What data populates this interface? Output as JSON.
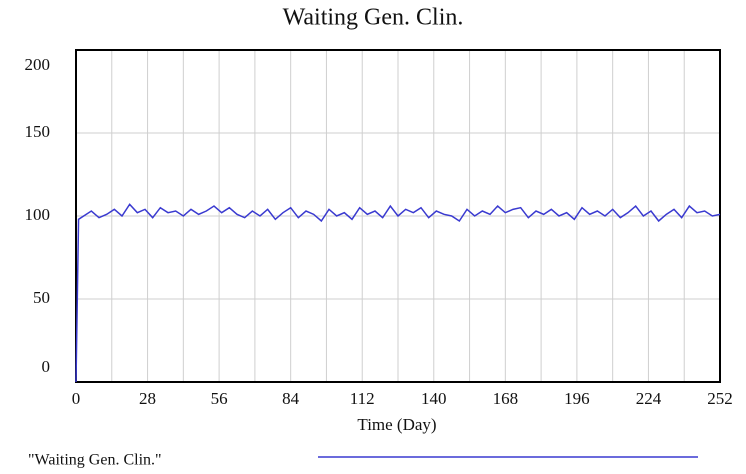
{
  "chart_data": {
    "type": "line",
    "title": "Waiting Gen. Clin.",
    "x_label": "Time (Day)",
    "x": [
      0,
      1,
      3,
      6,
      9,
      12,
      15,
      18,
      21,
      24,
      27,
      30,
      33,
      36,
      39,
      42,
      45,
      48,
      51,
      54,
      57,
      60,
      63,
      66,
      69,
      72,
      75,
      78,
      81,
      84,
      87,
      90,
      93,
      96,
      99,
      102,
      105,
      108,
      111,
      114,
      117,
      120,
      123,
      126,
      129,
      132,
      135,
      138,
      141,
      144,
      147,
      150,
      153,
      156,
      159,
      162,
      165,
      168,
      171,
      174,
      177,
      180,
      183,
      186,
      189,
      192,
      195,
      198,
      201,
      204,
      207,
      210,
      213,
      216,
      219,
      222,
      225,
      228,
      231,
      234,
      237,
      240,
      243,
      246,
      249,
      252
    ],
    "series": [
      {
        "name": "\"Waiting Gen. Clin.\"",
        "color": "#3a3ad0",
        "values": [
          0,
          98,
          100,
          103,
          99,
          101,
          104,
          100,
          107,
          102,
          104,
          99,
          105,
          102,
          103,
          100,
          104,
          101,
          103,
          106,
          102,
          105,
          101,
          99,
          103,
          100,
          104,
          98,
          102,
          105,
          99,
          103,
          101,
          97,
          104,
          100,
          102,
          98,
          105,
          101,
          103,
          99,
          106,
          100,
          104,
          102,
          105,
          99,
          103,
          101,
          100,
          97,
          104,
          100,
          103,
          101,
          106,
          102,
          104,
          105,
          99,
          103,
          101,
          104,
          100,
          102,
          98,
          105,
          101,
          103,
          100,
          104,
          99,
          102,
          106,
          100,
          103,
          97,
          101,
          104,
          99,
          106,
          102,
          103,
          100,
          101
        ]
      }
    ],
    "xlim": [
      0,
      252
    ],
    "xticks": [
      0,
      28,
      56,
      84,
      112,
      140,
      168,
      196,
      224,
      252
    ],
    "x_minor_grid": [
      14,
      42,
      70,
      98,
      126,
      154,
      182,
      210,
      238
    ],
    "ylim": [
      0,
      200
    ],
    "yticks": [
      0,
      50,
      100,
      150,
      200
    ],
    "grid": true
  }
}
